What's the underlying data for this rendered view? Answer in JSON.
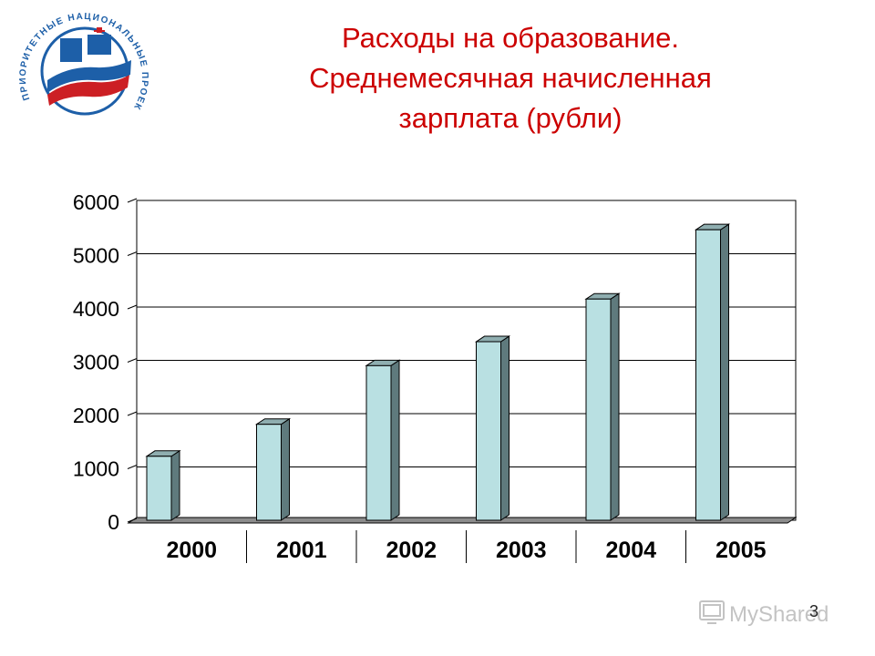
{
  "slide": {
    "title_line1": "Расходы на образование.",
    "title_line2": "Среднемесячная начисленная",
    "title_line3": "зарплата (рубли)",
    "page_number": "3"
  },
  "logo": {
    "text": "ПРИОРИТЕТНЫЕ НАЦИОНАЛЬНЫЕ ПРОЕКТЫ",
    "colors": [
      "#1d5fa8",
      "#cc1f24",
      "#ffffff"
    ]
  },
  "watermark": {
    "text": "MyShared"
  },
  "colors": {
    "title": "#cc0000",
    "bar_front": "#b9e0e2",
    "bar_side": "#5f7a7d",
    "bar_top": "#8faeb0",
    "floor": "#8c8c8c"
  },
  "chart_data": {
    "type": "bar",
    "title": "",
    "xlabel": "",
    "ylabel": "",
    "categories": [
      "2000",
      "2001",
      "2002",
      "2003",
      "2004",
      "2005"
    ],
    "values": [
      1200,
      1800,
      2900,
      3350,
      4150,
      5450
    ],
    "ylim": [
      0,
      6000
    ],
    "yticks": [
      0,
      1000,
      2000,
      3000,
      4000,
      5000,
      6000
    ],
    "grid": true,
    "legend": "none",
    "style": "3d-column"
  }
}
